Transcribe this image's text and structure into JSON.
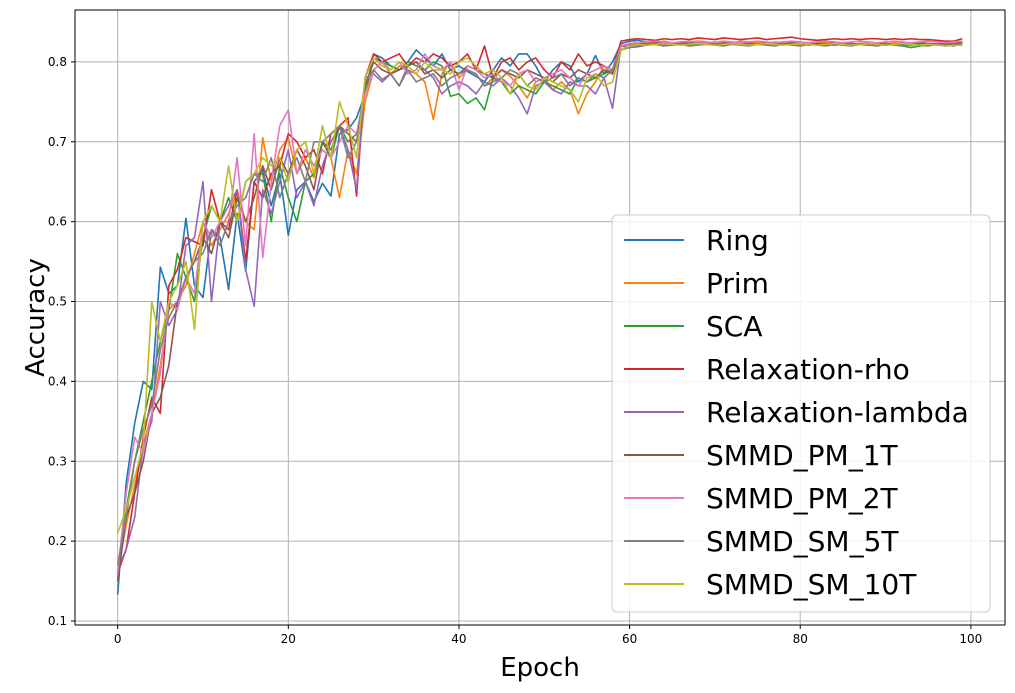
{
  "chart_data": {
    "type": "line",
    "title": "",
    "xlabel": "Epoch",
    "ylabel": "Accuracy",
    "xlim": [
      -5,
      104
    ],
    "ylim": [
      0.095,
      0.865
    ],
    "xticks": [
      0,
      20,
      40,
      60,
      80,
      100
    ],
    "yticks": [
      0.1,
      0.2,
      0.3,
      0.4,
      0.5,
      0.6,
      0.7,
      0.8
    ],
    "grid": true,
    "legend_position": "lower-right",
    "series": [
      {
        "name": "Ring",
        "color": "#1f77b4",
        "values": [
          0.133,
          0.273,
          0.348,
          0.4,
          0.39,
          0.543,
          0.51,
          0.52,
          0.604,
          0.52,
          0.505,
          0.59,
          0.58,
          0.515,
          0.61,
          0.538,
          0.65,
          0.665,
          0.62,
          0.66,
          0.583,
          0.64,
          0.65,
          0.625,
          0.648,
          0.632,
          0.71,
          0.715,
          0.73,
          0.76,
          0.81,
          0.805,
          0.795,
          0.79,
          0.8,
          0.815,
          0.805,
          0.795,
          0.81,
          0.79,
          0.795,
          0.788,
          0.782,
          0.775,
          0.79,
          0.805,
          0.795,
          0.81,
          0.81,
          0.795,
          0.775,
          0.79,
          0.8,
          0.795,
          0.775,
          0.785,
          0.808,
          0.785,
          0.8,
          0.823,
          0.826,
          0.827,
          0.825,
          0.825,
          0.824,
          0.823,
          0.825,
          0.823,
          0.824,
          0.825,
          0.823,
          0.822,
          0.824,
          0.822,
          0.823,
          0.824,
          0.823,
          0.823,
          0.824,
          0.822,
          0.823,
          0.821,
          0.822,
          0.823,
          0.822,
          0.823,
          0.823,
          0.822,
          0.823,
          0.822,
          0.821,
          0.822,
          0.822,
          0.821,
          0.822,
          0.823,
          0.822,
          0.822,
          0.822,
          0.825
        ]
      },
      {
        "name": "Prim",
        "color": "#ff7f0e",
        "values": [
          0.16,
          0.22,
          0.27,
          0.32,
          0.36,
          0.42,
          0.49,
          0.5,
          0.52,
          0.56,
          0.6,
          0.57,
          0.59,
          0.61,
          0.64,
          0.6,
          0.59,
          0.705,
          0.65,
          0.69,
          0.705,
          0.66,
          0.68,
          0.655,
          0.7,
          0.68,
          0.63,
          0.69,
          0.66,
          0.75,
          0.79,
          0.8,
          0.785,
          0.795,
          0.79,
          0.785,
          0.775,
          0.728,
          0.785,
          0.8,
          0.78,
          0.79,
          0.785,
          0.77,
          0.78,
          0.79,
          0.782,
          0.77,
          0.755,
          0.775,
          0.78,
          0.765,
          0.775,
          0.765,
          0.735,
          0.76,
          0.775,
          0.795,
          0.785,
          0.82,
          0.822,
          0.823,
          0.824,
          0.824,
          0.826,
          0.824,
          0.823,
          0.825,
          0.826,
          0.825,
          0.823,
          0.822,
          0.824,
          0.826,
          0.825,
          0.824,
          0.823,
          0.825,
          0.824,
          0.823,
          0.822,
          0.824,
          0.823,
          0.825,
          0.824,
          0.823,
          0.822,
          0.823,
          0.824,
          0.823,
          0.822,
          0.824,
          0.823,
          0.822,
          0.824,
          0.823,
          0.822,
          0.821,
          0.823,
          0.822
        ]
      },
      {
        "name": "SCA",
        "color": "#2ca02c",
        "values": [
          0.15,
          0.24,
          0.3,
          0.35,
          0.4,
          0.45,
          0.49,
          0.56,
          0.53,
          0.5,
          0.58,
          0.62,
          0.6,
          0.63,
          0.6,
          0.65,
          0.66,
          0.66,
          0.6,
          0.67,
          0.63,
          0.6,
          0.65,
          0.66,
          0.7,
          0.68,
          0.72,
          0.7,
          0.71,
          0.76,
          0.805,
          0.8,
          0.795,
          0.79,
          0.8,
          0.795,
          0.79,
          0.8,
          0.795,
          0.757,
          0.76,
          0.748,
          0.755,
          0.74,
          0.78,
          0.775,
          0.76,
          0.77,
          0.765,
          0.76,
          0.775,
          0.77,
          0.765,
          0.76,
          0.78,
          0.775,
          0.78,
          0.785,
          0.79,
          0.82,
          0.823,
          0.824,
          0.822,
          0.823,
          0.824,
          0.822,
          0.823,
          0.822,
          0.824,
          0.823,
          0.822,
          0.824,
          0.823,
          0.822,
          0.823,
          0.822,
          0.824,
          0.823,
          0.822,
          0.824,
          0.823,
          0.822,
          0.823,
          0.822,
          0.821,
          0.822,
          0.823,
          0.822,
          0.821,
          0.822,
          0.821,
          0.822,
          0.82,
          0.818,
          0.82,
          0.821,
          0.822,
          0.82,
          0.821,
          0.822
        ]
      },
      {
        "name": "Relaxation-rho",
        "color": "#d62728",
        "values": [
          0.16,
          0.19,
          0.26,
          0.33,
          0.38,
          0.36,
          0.52,
          0.54,
          0.58,
          0.575,
          0.57,
          0.64,
          0.6,
          0.59,
          0.64,
          0.55,
          0.65,
          0.63,
          0.66,
          0.67,
          0.71,
          0.7,
          0.68,
          0.69,
          0.66,
          0.71,
          0.72,
          0.73,
          0.632,
          0.78,
          0.81,
          0.8,
          0.805,
          0.81,
          0.795,
          0.805,
          0.8,
          0.81,
          0.805,
          0.795,
          0.8,
          0.81,
          0.79,
          0.82,
          0.78,
          0.8,
          0.805,
          0.79,
          0.8,
          0.805,
          0.79,
          0.78,
          0.8,
          0.79,
          0.81,
          0.795,
          0.8,
          0.795,
          0.79,
          0.826,
          0.828,
          0.829,
          0.828,
          0.827,
          0.829,
          0.828,
          0.829,
          0.828,
          0.83,
          0.829,
          0.828,
          0.83,
          0.829,
          0.828,
          0.829,
          0.83,
          0.828,
          0.829,
          0.83,
          0.831,
          0.829,
          0.828,
          0.827,
          0.828,
          0.829,
          0.828,
          0.829,
          0.828,
          0.829,
          0.829,
          0.828,
          0.829,
          0.828,
          0.829,
          0.828,
          0.828,
          0.827,
          0.826,
          0.826,
          0.829
        ]
      },
      {
        "name": "Relaxation-lambda",
        "color": "#9467bd",
        "values": [
          0.165,
          0.19,
          0.23,
          0.32,
          0.35,
          0.5,
          0.47,
          0.49,
          0.57,
          0.58,
          0.65,
          0.5,
          0.6,
          0.62,
          0.64,
          0.54,
          0.494,
          0.64,
          0.61,
          0.65,
          0.69,
          0.63,
          0.65,
          0.62,
          0.67,
          0.7,
          0.72,
          0.69,
          0.64,
          0.78,
          0.785,
          0.775,
          0.785,
          0.77,
          0.795,
          0.8,
          0.79,
          0.78,
          0.76,
          0.77,
          0.775,
          0.77,
          0.76,
          0.775,
          0.77,
          0.78,
          0.77,
          0.755,
          0.735,
          0.77,
          0.775,
          0.765,
          0.76,
          0.775,
          0.77,
          0.77,
          0.76,
          0.78,
          0.742,
          0.82,
          0.818,
          0.819,
          0.821,
          0.822,
          0.822,
          0.821,
          0.823,
          0.822,
          0.823,
          0.822,
          0.821,
          0.822,
          0.823,
          0.822,
          0.821,
          0.822,
          0.823,
          0.822,
          0.823,
          0.822,
          0.824,
          0.822,
          0.823,
          0.822,
          0.821,
          0.822,
          0.823,
          0.822,
          0.821,
          0.822,
          0.823,
          0.822,
          0.823,
          0.822,
          0.821,
          0.822,
          0.823,
          0.822,
          0.823,
          0.823
        ]
      },
      {
        "name": "SMMD_PM_1T",
        "color": "#8c564b",
        "values": [
          0.15,
          0.23,
          0.26,
          0.3,
          0.36,
          0.38,
          0.42,
          0.5,
          0.53,
          0.55,
          0.58,
          0.56,
          0.6,
          0.58,
          0.63,
          0.6,
          0.63,
          0.67,
          0.64,
          0.68,
          0.66,
          0.69,
          0.67,
          0.64,
          0.7,
          0.69,
          0.72,
          0.71,
          0.7,
          0.77,
          0.8,
          0.79,
          0.785,
          0.79,
          0.795,
          0.8,
          0.785,
          0.79,
          0.78,
          0.79,
          0.785,
          0.795,
          0.79,
          0.785,
          0.78,
          0.79,
          0.785,
          0.78,
          0.79,
          0.785,
          0.78,
          0.775,
          0.785,
          0.78,
          0.79,
          0.785,
          0.78,
          0.79,
          0.785,
          0.82,
          0.822,
          0.823,
          0.822,
          0.824,
          0.823,
          0.822,
          0.824,
          0.823,
          0.822,
          0.823,
          0.822,
          0.824,
          0.823,
          0.822,
          0.823,
          0.822,
          0.824,
          0.823,
          0.822,
          0.824,
          0.823,
          0.822,
          0.823,
          0.822,
          0.824,
          0.823,
          0.822,
          0.823,
          0.822,
          0.824,
          0.823,
          0.822,
          0.823,
          0.822,
          0.824,
          0.823,
          0.822,
          0.823,
          0.822,
          0.825
        ]
      },
      {
        "name": "SMMD_PM_2T",
        "color": "#e377c2",
        "values": [
          0.16,
          0.26,
          0.33,
          0.31,
          0.36,
          0.41,
          0.5,
          0.49,
          0.53,
          0.51,
          0.6,
          0.58,
          0.6,
          0.6,
          0.68,
          0.57,
          0.71,
          0.555,
          0.65,
          0.72,
          0.74,
          0.66,
          0.69,
          0.67,
          0.69,
          0.68,
          0.7,
          0.72,
          0.71,
          0.76,
          0.79,
          0.8,
          0.79,
          0.8,
          0.785,
          0.79,
          0.81,
          0.795,
          0.79,
          0.8,
          0.765,
          0.795,
          0.79,
          0.78,
          0.785,
          0.775,
          0.77,
          0.785,
          0.79,
          0.775,
          0.78,
          0.785,
          0.79,
          0.78,
          0.77,
          0.785,
          0.79,
          0.795,
          0.79,
          0.82,
          0.823,
          0.824,
          0.825,
          0.826,
          0.825,
          0.824,
          0.825,
          0.826,
          0.825,
          0.824,
          0.825,
          0.826,
          0.825,
          0.824,
          0.825,
          0.826,
          0.825,
          0.824,
          0.825,
          0.826,
          0.825,
          0.824,
          0.825,
          0.826,
          0.825,
          0.824,
          0.825,
          0.826,
          0.825,
          0.824,
          0.825,
          0.826,
          0.825,
          0.824,
          0.825,
          0.826,
          0.825,
          0.824,
          0.825,
          0.826
        ]
      },
      {
        "name": "SMMD_SM_5T",
        "color": "#7f7f7f",
        "values": [
          0.17,
          0.23,
          0.3,
          0.34,
          0.37,
          0.44,
          0.48,
          0.5,
          0.53,
          0.55,
          0.56,
          0.59,
          0.57,
          0.6,
          0.62,
          0.63,
          0.66,
          0.65,
          0.68,
          0.63,
          0.66,
          0.68,
          0.65,
          0.7,
          0.7,
          0.71,
          0.72,
          0.68,
          0.7,
          0.775,
          0.79,
          0.778,
          0.785,
          0.77,
          0.79,
          0.775,
          0.78,
          0.785,
          0.77,
          0.78,
          0.785,
          0.79,
          0.785,
          0.77,
          0.775,
          0.78,
          0.79,
          0.785,
          0.77,
          0.78,
          0.775,
          0.78,
          0.785,
          0.77,
          0.78,
          0.775,
          0.785,
          0.78,
          0.79,
          0.815,
          0.818,
          0.82,
          0.821,
          0.822,
          0.82,
          0.821,
          0.822,
          0.82,
          0.821,
          0.822,
          0.821,
          0.82,
          0.822,
          0.821,
          0.82,
          0.822,
          0.821,
          0.82,
          0.822,
          0.821,
          0.82,
          0.822,
          0.821,
          0.82,
          0.822,
          0.821,
          0.82,
          0.822,
          0.821,
          0.82,
          0.822,
          0.821,
          0.82,
          0.822,
          0.821,
          0.82,
          0.822,
          0.821,
          0.82,
          0.823
        ]
      },
      {
        "name": "SMMD_SM_10T",
        "color": "#bcbd22",
        "values": [
          0.21,
          0.24,
          0.28,
          0.32,
          0.5,
          0.45,
          0.5,
          0.52,
          0.55,
          0.465,
          0.6,
          0.62,
          0.6,
          0.67,
          0.6,
          0.65,
          0.66,
          0.68,
          0.67,
          0.68,
          0.65,
          0.69,
          0.7,
          0.66,
          0.72,
          0.68,
          0.75,
          0.72,
          0.68,
          0.78,
          0.805,
          0.795,
          0.79,
          0.8,
          0.795,
          0.785,
          0.8,
          0.79,
          0.79,
          0.785,
          0.8,
          0.805,
          0.795,
          0.785,
          0.79,
          0.78,
          0.76,
          0.785,
          0.77,
          0.765,
          0.78,
          0.775,
          0.77,
          0.765,
          0.75,
          0.78,
          0.785,
          0.77,
          0.775,
          0.815,
          0.82,
          0.822,
          0.821,
          0.822,
          0.823,
          0.822,
          0.821,
          0.822,
          0.823,
          0.822,
          0.821,
          0.822,
          0.823,
          0.822,
          0.821,
          0.822,
          0.823,
          0.822,
          0.821,
          0.822,
          0.823,
          0.822,
          0.821,
          0.822,
          0.823,
          0.822,
          0.821,
          0.822,
          0.823,
          0.822,
          0.821,
          0.822,
          0.823,
          0.822,
          0.821,
          0.822,
          0.821,
          0.82,
          0.821,
          0.821
        ]
      }
    ]
  }
}
